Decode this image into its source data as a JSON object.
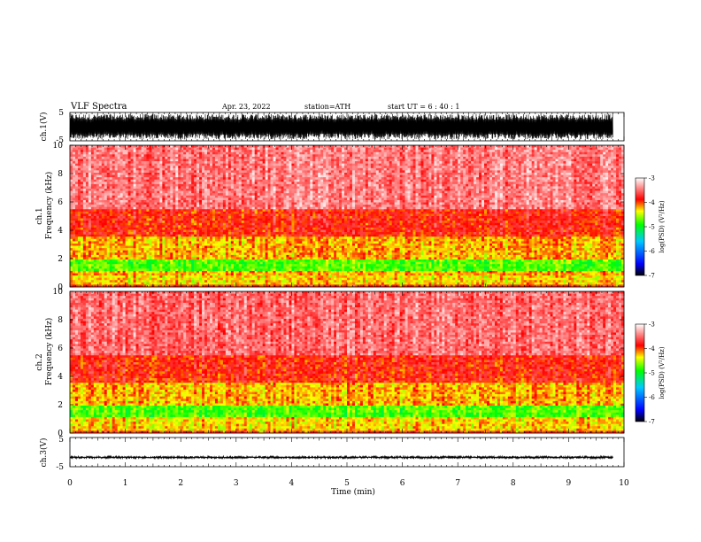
{
  "header": {
    "title": "VLF  Spectra",
    "date": "Apr. 23, 2022",
    "station": "station=ATH",
    "start": "start  UT  =   6  : 40 : 1"
  },
  "colors": {
    "waveform": "#000000",
    "colormap": [
      "#000000",
      "#0000ff",
      "#00c8ff",
      "#00ff00",
      "#ffff00",
      "#ff0000",
      "#ffffff"
    ]
  },
  "chart_data": [
    {
      "type": "line",
      "ylabel": "ch.1(V)",
      "xlim": [
        0,
        10
      ],
      "ylim": [
        -5,
        5
      ],
      "yticks": [
        "5",
        "-5"
      ],
      "series": [
        {
          "x_range": [
            0,
            9.8
          ],
          "amplitude": 4.5
        }
      ]
    },
    {
      "type": "heatmap",
      "ylabel_channel": "ch.1",
      "ylabel": "Frequency  (kHz)",
      "xlim": [
        0,
        10
      ],
      "ylim": [
        0,
        10
      ],
      "yticks": [
        "0",
        "2",
        "4",
        "6",
        "8",
        "10"
      ],
      "colorbar": {
        "label": "log(PSD) (V²/Hz)",
        "ticks": [
          "-3",
          "-4",
          "-5",
          "-6",
          "-7"
        ],
        "range": [
          -7,
          -3
        ]
      },
      "bands_khz_log_psd": [
        {
          "from": 0,
          "to": 0.2,
          "value": -3.9
        },
        {
          "from": 0.2,
          "to": 0.8,
          "value": -4.3
        },
        {
          "from": 0.8,
          "to": 1.2,
          "value": -4.2
        },
        {
          "from": 1.2,
          "to": 2.0,
          "value": -4.75
        },
        {
          "from": 2.0,
          "to": 3.5,
          "value": -4.2
        },
        {
          "from": 3.5,
          "to": 5.5,
          "value": -3.85
        },
        {
          "from": 5.5,
          "to": 10,
          "value": -3.45
        }
      ]
    },
    {
      "type": "heatmap",
      "ylabel_channel": "ch.2",
      "ylabel": "Frequency  (kHz)",
      "xlim": [
        0,
        10
      ],
      "ylim": [
        0,
        10
      ],
      "yticks": [
        "0",
        "2",
        "4",
        "6",
        "8",
        "10"
      ],
      "colorbar": {
        "label": "log(PSD) (V²/Hz)",
        "ticks": [
          "-3",
          "-4",
          "-5",
          "-6",
          "-7"
        ],
        "range": [
          -7,
          -3
        ]
      },
      "bands_khz_log_psd": [
        {
          "from": 0,
          "to": 0.2,
          "value": -3.9
        },
        {
          "from": 0.2,
          "to": 0.8,
          "value": -4.3
        },
        {
          "from": 0.8,
          "to": 1.2,
          "value": -4.3
        },
        {
          "from": 1.2,
          "to": 2.0,
          "value": -4.75
        },
        {
          "from": 2.0,
          "to": 3.5,
          "value": -4.2
        },
        {
          "from": 3.5,
          "to": 5.5,
          "value": -3.85
        },
        {
          "from": 5.5,
          "to": 10,
          "value": -3.5
        }
      ]
    },
    {
      "type": "line",
      "ylabel": "ch.3(V)",
      "xlabel": "Time  (min)",
      "xlim": [
        0,
        10
      ],
      "ylim": [
        -5,
        5
      ],
      "xticks": [
        "0",
        "1",
        "2",
        "3",
        "4",
        "5",
        "6",
        "7",
        "8",
        "9",
        "10"
      ],
      "yticks": [
        "5",
        "-5"
      ],
      "series": [
        {
          "x_range": [
            0,
            9.8
          ],
          "value": -1.8,
          "amplitude": 0.4
        }
      ]
    }
  ]
}
